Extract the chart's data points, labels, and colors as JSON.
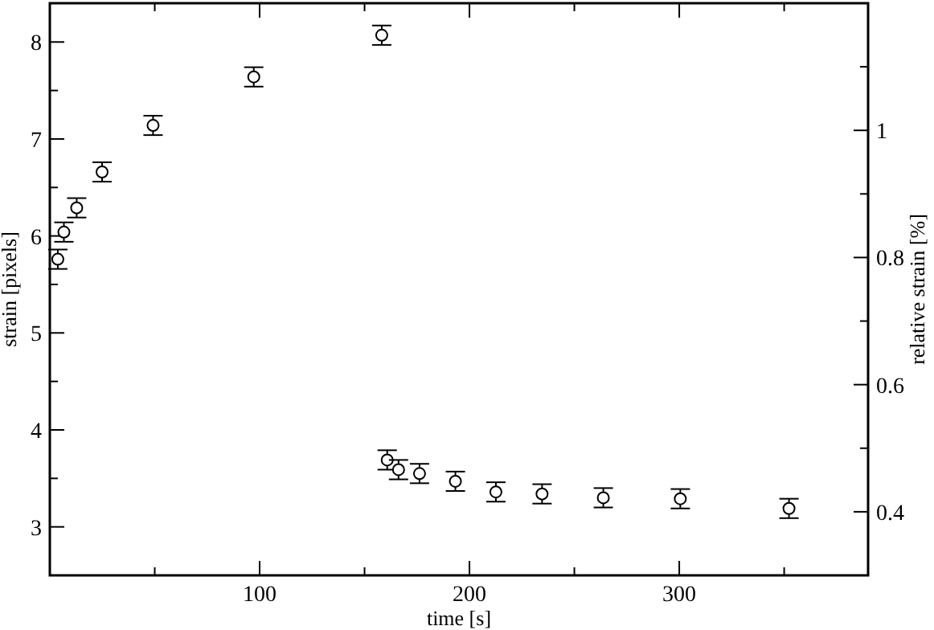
{
  "chart_data": {
    "type": "scatter",
    "xlabel": "time [s]",
    "ylabel": "strain [pixels]",
    "y2label": "relative strain [%]",
    "x": [
      3.8,
      6.7,
      12.8,
      24.9,
      49.2,
      97.2,
      158.2,
      160.8,
      166.2,
      176.2,
      193.3,
      212.6,
      234.6,
      263.8,
      300.5,
      352.3
    ],
    "series": [
      {
        "color": "#000000",
        "values": [
          5.76,
          6.04,
          6.29,
          6.66,
          7.14,
          7.64,
          8.07,
          3.69,
          3.59,
          3.55,
          3.47,
          3.36,
          3.34,
          3.3,
          3.29,
          3.19
        ],
        "errors": [
          0.1,
          0.1,
          0.1,
          0.1,
          0.1,
          0.1,
          0.1,
          0.1,
          0.1,
          0.1,
          0.1,
          0.1,
          0.1,
          0.1,
          0.1,
          0.1
        ]
      }
    ],
    "xlim": [
      0,
      390
    ],
    "xticks": [
      {
        "value": 50,
        "label": null
      },
      100,
      {
        "value": 150,
        "label": null
      },
      200,
      {
        "value": 250,
        "label": null
      },
      300,
      {
        "value": 350,
        "label": null
      }
    ],
    "ylim": [
      2.5,
      8.4
    ],
    "yticks": [
      3,
      {
        "value": 3.5,
        "label": null
      },
      4,
      {
        "value": 4.5,
        "label": null
      },
      5,
      {
        "value": 5.5,
        "label": null
      },
      6,
      {
        "value": 6.5,
        "label": null
      },
      7,
      {
        "value": 7.5,
        "label": null
      },
      8
    ],
    "y2lim": [
      0.3,
      1.2
    ],
    "y2ticks": [
      {
        "value": 0.3,
        "label": null
      },
      0.4,
      {
        "value": 0.5,
        "label": null
      },
      0.6,
      {
        "value": 0.7,
        "label": null
      },
      0.8,
      {
        "value": 0.9,
        "label": null
      },
      1,
      {
        "value": 1.1,
        "label": null
      }
    ],
    "marker": "circle"
  }
}
